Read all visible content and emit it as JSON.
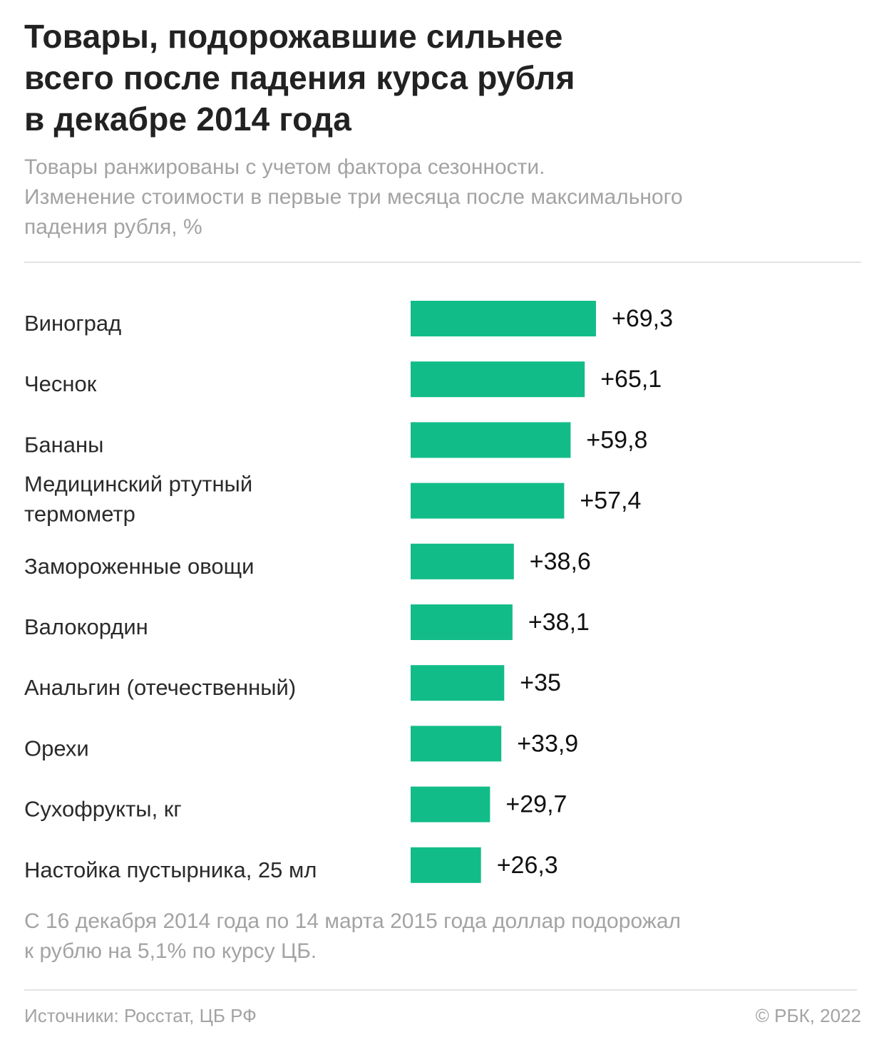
{
  "header": {
    "title_lines": [
      "Товары, подорожавшие сильнее",
      "всего после падения курса рубля",
      "в декабре 2014 года"
    ],
    "subtitle_lines": [
      "Товары ранжированы с учетом фактора сезонности.",
      "Изменение стоимости в первые три месяца после максимального",
      "падения рубля, %"
    ]
  },
  "footer": {
    "note_lines": [
      "С 16 декабря 2014 года по 14 марта 2015 года доллар подорожал",
      "к рублю на 5,1% по курсу ЦБ."
    ],
    "source": "Источники: Росстат, ЦБ РФ",
    "copyright": "© РБК, 2022"
  },
  "colors": {
    "bar": "#12bc88",
    "category_text": "#2a2a2a",
    "value_text": "#111111"
  },
  "chart_data": {
    "type": "bar",
    "orientation": "horizontal",
    "title": "Товары, подорожавшие сильнее всего после падения курса рубля в декабре 2014 года",
    "xlabel": "",
    "ylabel": "",
    "unit": "%",
    "xlim": [
      0,
      69.3
    ],
    "grid": false,
    "legend": "none",
    "categories": [
      [
        "Виноград"
      ],
      [
        "Чеснок"
      ],
      [
        "Бананы"
      ],
      [
        "Медицинский ртутный",
        "термометр"
      ],
      [
        "Замороженные овощи"
      ],
      [
        "Валокордин"
      ],
      [
        "Анальгин (отечественный)"
      ],
      [
        "Орехи"
      ],
      [
        "Сухофрукты, кг"
      ],
      [
        "Настойка пустырника, 25 мл"
      ]
    ],
    "values": [
      69.3,
      65.1,
      59.8,
      57.4,
      38.6,
      38.1,
      35,
      33.9,
      29.7,
      26.3
    ],
    "value_labels": [
      "+69,3",
      "+65,1",
      "+59,8",
      "+57,4",
      "+38,6",
      "+38,1",
      "+35",
      "+33,9",
      "+29,7",
      "+26,3"
    ]
  }
}
